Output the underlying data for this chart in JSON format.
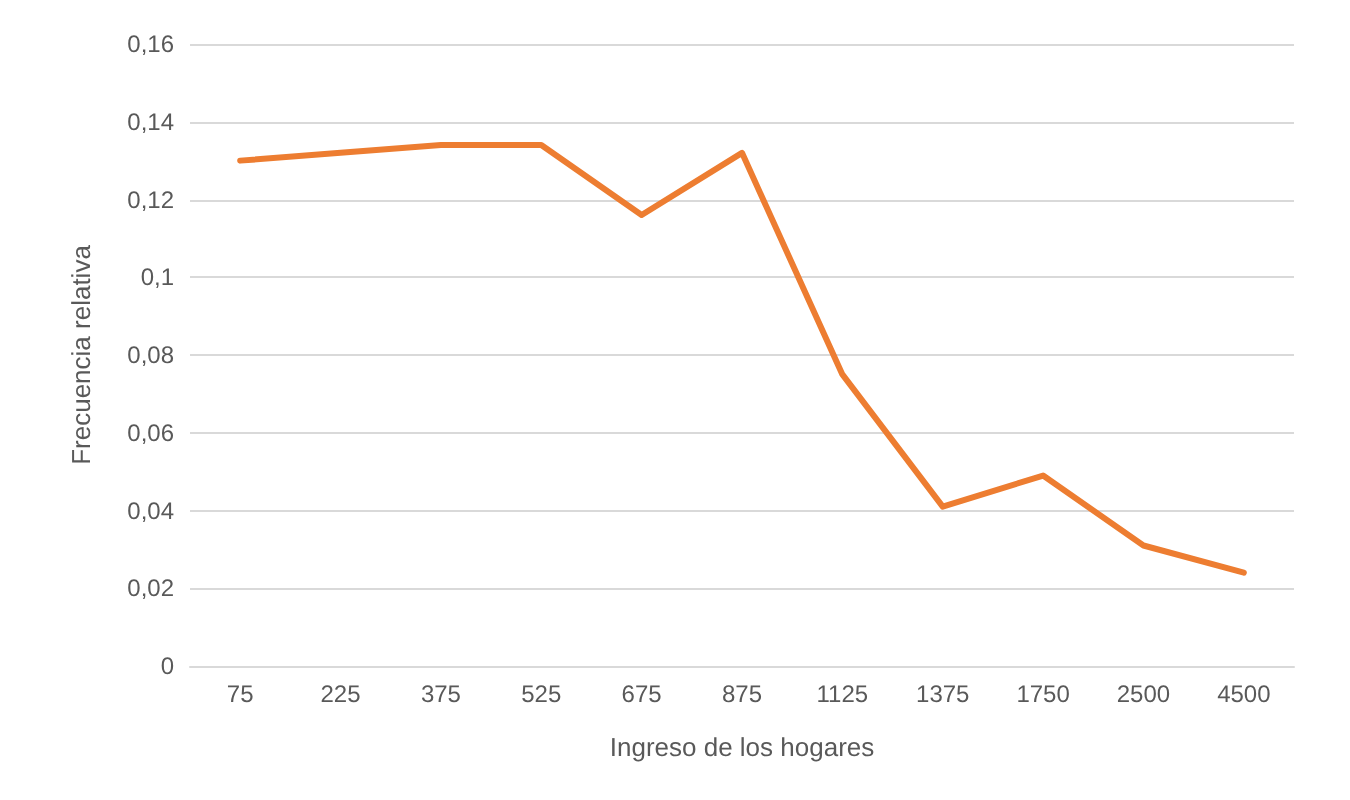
{
  "chart_data": {
    "type": "line",
    "xlabel": "Ingreso de los hogares",
    "ylabel": "Frecuencia relativa",
    "categories": [
      "75",
      "225",
      "375",
      "525",
      "675",
      "875",
      "1125",
      "1375",
      "1750",
      "2500",
      "4500"
    ],
    "series": [
      {
        "color": "#ed7d31",
        "values": [
          0.13,
          0.132,
          0.134,
          0.134,
          0.116,
          0.132,
          0.075,
          0.041,
          0.049,
          0.031,
          0.024
        ]
      }
    ],
    "ylim": [
      0,
      0.16
    ],
    "yticks": [
      {
        "value": 0,
        "label": "0"
      },
      {
        "value": 0.02,
        "label": "0,02"
      },
      {
        "value": 0.04,
        "label": "0,04"
      },
      {
        "value": 0.06,
        "label": "0,06"
      },
      {
        "value": 0.08,
        "label": "0,08"
      },
      {
        "value": 0.1,
        "label": "0,1"
      },
      {
        "value": 0.12,
        "label": "0,12"
      },
      {
        "value": 0.14,
        "label": "0,14"
      },
      {
        "value": 0.16,
        "label": "0,16"
      }
    ],
    "grid": "y",
    "marker": "none",
    "line_style": "solid"
  }
}
